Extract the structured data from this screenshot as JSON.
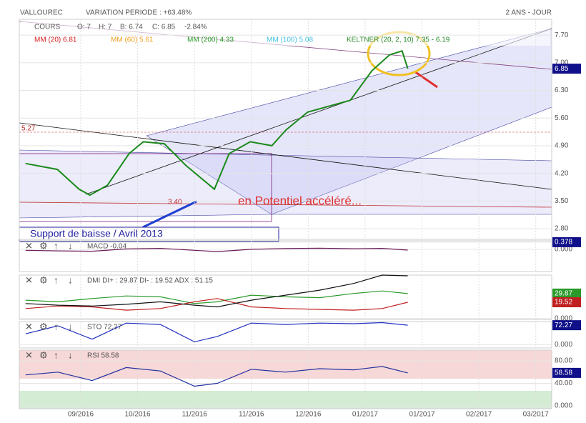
{
  "header": {
    "title": "VALLOUREC",
    "variation": "VARIATION PERIODE : +63.48%",
    "period": "2 ANS - JOUR"
  },
  "chart_data": [
    {
      "type": "line",
      "quote": [
        "COURS",
        "O: 7",
        "H: 7",
        "B: 6.74",
        "C: 6.85",
        "-2.84%"
      ],
      "indicators": [
        {
          "text": "MM (20) 6.81",
          "color": "#d42020"
        },
        {
          "text": "MM (60) 5.61",
          "color": "#f0a020"
        },
        {
          "text": "MM (200) 4.33",
          "color": "#2a9a2a"
        },
        {
          "text": "MM (100) 5.08",
          "color": "#40c0e0"
        },
        {
          "text": "KELTNER (20, 2, 10) 7.35 - 6.19",
          "color": "#2a8a2a"
        }
      ],
      "annotations": [
        "5.27",
        "3.40",
        "en Potentiel accéléré...",
        "Support de baisse / Avril 2013"
      ],
      "x": [
        0.03,
        0.59,
        0.97,
        1.16,
        1.47,
        1.85,
        2.1,
        2.47,
        2.85,
        3.35,
        3.61,
        3.98,
        4.36,
        4.61,
        4.99,
        5.36,
        5.74,
        6.12,
        6.43,
        6.65,
        6.75
      ],
      "series": [
        {
          "color": "#1a8a1a",
          "values": [
            4.45,
            4.3,
            3.8,
            3.65,
            3.9,
            4.7,
            5.0,
            4.95,
            4.4,
            3.8,
            4.7,
            5.0,
            4.9,
            5.3,
            5.75,
            5.9,
            6.05,
            6.8,
            7.2,
            7.3,
            6.85
          ]
        }
      ],
      "xlim": [
        -0.08,
        9.28
      ],
      "ylim": [
        2.53,
        8.1
      ],
      "yticks": [
        {
          "value": 7.7,
          "label": "7.70"
        },
        {
          "value": 7.0,
          "label": "7.00"
        },
        {
          "value": 6.3,
          "label": "6.30"
        },
        {
          "value": 5.6,
          "label": "5.60"
        },
        {
          "value": 4.9,
          "label": "4.90"
        },
        {
          "value": 4.2,
          "label": "4.20"
        },
        {
          "value": 3.5,
          "label": "3.50"
        },
        {
          "value": 2.8,
          "label": "2.80"
        }
      ],
      "xticks": [
        {
          "value": 1,
          "label": "09/2016"
        },
        {
          "value": 2,
          "label": "10/2016"
        },
        {
          "value": 3,
          "label": "11/2016"
        },
        {
          "value": 4,
          "label": "11/2016"
        },
        {
          "value": 5,
          "label": "12/2016"
        },
        {
          "value": 6,
          "label": "01/2017"
        },
        {
          "value": 7,
          "label": "01/2017"
        },
        {
          "value": 8,
          "label": "02/2017"
        },
        {
          "value": 9,
          "label": "03/2017"
        }
      ]
    },
    {
      "type": "line",
      "label": "MACD -0.04",
      "x": [
        0.03,
        0.6,
        1.2,
        1.8,
        2.4,
        3.0,
        3.4,
        4.0,
        4.6,
        5.2,
        5.8,
        6.3,
        6.75
      ],
      "series": [
        {
          "color": "#6a1a5a",
          "values": [
            -0.05,
            -0.08,
            -0.1,
            0.02,
            0.05,
            -0.05,
            -0.12,
            0.0,
            0.04,
            0.06,
            0.03,
            0.05,
            -0.04
          ]
        }
      ],
      "xlim": [
        -0.08,
        9.28
      ],
      "ylim": [
        -1.17,
        0.45
      ],
      "yticks": [
        {
          "value": 0.378,
          "label": "0.378"
        },
        {
          "value": 0,
          "label": "0.000"
        }
      ]
    },
    {
      "type": "line",
      "label": "DMI DI+ : 29.87 DI- : 19.52 ADX : 51.15",
      "x": [
        0.03,
        0.6,
        1.2,
        1.8,
        2.4,
        3.0,
        3.4,
        4.0,
        4.6,
        5.2,
        5.8,
        6.3,
        6.75
      ],
      "series": [
        {
          "color": "#2a9a2a",
          "values": [
            22,
            20,
            24,
            27,
            26,
            18,
            20,
            28,
            26,
            25,
            30,
            33,
            29.87
          ]
        },
        {
          "color": "#c02020",
          "values": [
            12,
            15,
            14,
            10,
            12,
            20,
            24,
            14,
            12,
            11,
            10,
            12,
            19.52
          ]
        },
        {
          "color": "#111111",
          "values": [
            18,
            16,
            15,
            17,
            20,
            16,
            14,
            22,
            28,
            34,
            42,
            52,
            51.15
          ]
        }
      ],
      "xlim": [
        -0.08,
        9.28
      ],
      "ylim": [
        -1,
        52
      ],
      "yticks": [
        {
          "value": 0,
          "label": "0.000"
        }
      ]
    },
    {
      "type": "line",
      "label": "STO 72.27",
      "x": [
        0.03,
        0.6,
        1.2,
        1.8,
        2.4,
        3.0,
        3.4,
        4.0,
        4.6,
        5.2,
        5.8,
        6.3,
        6.75
      ],
      "series": [
        {
          "color": "#2030c0",
          "values": [
            40,
            70,
            20,
            80,
            75,
            10,
            30,
            80,
            75,
            80,
            78,
            82,
            72.27
          ]
        }
      ],
      "xlim": [
        -0.08,
        9.28
      ],
      "ylim": [
        -13,
        86
      ],
      "yticks": [
        {
          "value": 0,
          "label": "0.000"
        }
      ]
    },
    {
      "type": "line",
      "label": "RSI 58.58",
      "x": [
        0.03,
        0.6,
        1.2,
        1.8,
        2.4,
        3.0,
        3.4,
        4.0,
        4.6,
        5.2,
        5.8,
        6.3,
        6.75
      ],
      "series": [
        {
          "color": "#2030a0",
          "values": [
            55,
            60,
            45,
            68,
            62,
            35,
            40,
            65,
            60,
            66,
            64,
            70,
            58.58
          ]
        }
      ],
      "xlim": [
        -0.08,
        9.28
      ],
      "ylim": [
        -5,
        99
      ],
      "yticks": [
        {
          "value": 80,
          "label": "80.00"
        },
        {
          "value": 40,
          "label": "40.00"
        },
        {
          "value": 0,
          "label": "0.000"
        }
      ]
    }
  ]
}
